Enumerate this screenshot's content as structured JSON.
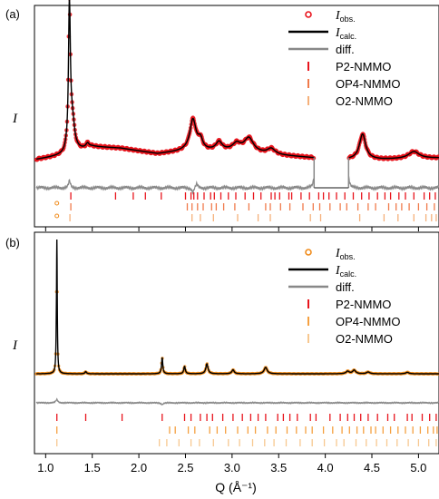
{
  "chart_data": [
    {
      "type": "line",
      "panel_label": "(a)",
      "ylabel": "I",
      "xlim": [
        0.88,
        5.22
      ],
      "grid": false,
      "legend_position": "top-right",
      "legend": [
        {
          "kind": "obs",
          "text": "I",
          "sub": "obs.",
          "color": "#e8141c"
        },
        {
          "kind": "calc",
          "text": "I",
          "sub": "calc.",
          "color": "#000000"
        },
        {
          "kind": "diff",
          "text": "diff.",
          "color": "#888888"
        },
        {
          "kind": "tick",
          "text": "P2-NMMO",
          "color": "#e8141c"
        },
        {
          "kind": "tick",
          "text": "OP4-NMMO",
          "color": "#f07a4a"
        },
        {
          "kind": "tick",
          "text": "O2-NMMO",
          "color": "#f5b07a"
        }
      ],
      "excluded_region": [
        3.88,
        4.25
      ],
      "peaks": [
        {
          "q": 1.255,
          "h": 1.0,
          "w": 0.012
        },
        {
          "q": 1.285,
          "h": 0.22,
          "w": 0.03
        },
        {
          "q": 1.45,
          "h": 0.03,
          "w": 0.02
        },
        {
          "q": 2.58,
          "h": 0.22,
          "w": 0.04
        },
        {
          "q": 2.66,
          "h": 0.07,
          "w": 0.03
        },
        {
          "q": 2.86,
          "h": 0.06,
          "w": 0.04
        },
        {
          "q": 3.05,
          "h": 0.05,
          "w": 0.05
        },
        {
          "q": 3.18,
          "h": 0.1,
          "w": 0.06
        },
        {
          "q": 3.42,
          "h": 0.04,
          "w": 0.05
        },
        {
          "q": 4.4,
          "h": 0.18,
          "w": 0.04
        },
        {
          "q": 4.95,
          "h": 0.05,
          "w": 0.07
        }
      ],
      "background": [
        [
          0.9,
          0.04
        ],
        [
          1.2,
          0.07
        ],
        [
          1.5,
          0.13
        ],
        [
          1.8,
          0.12
        ],
        [
          2.2,
          0.08
        ],
        [
          2.5,
          0.1
        ],
        [
          3.0,
          0.1
        ],
        [
          3.5,
          0.07
        ],
        [
          3.9,
          0.05
        ],
        [
          4.25,
          0.04
        ],
        [
          4.6,
          0.04
        ],
        [
          5.2,
          0.05
        ]
      ],
      "diff_features": [
        {
          "q": 1.255,
          "a": 0.12
        },
        {
          "q": 2.58,
          "a": -0.09
        },
        {
          "q": 2.62,
          "a": 0.07
        },
        {
          "q": 3.88,
          "a": 0.2
        },
        {
          "q": 4.25,
          "a": 0.2
        }
      ],
      "reflections": [
        {
          "phase": "P2-NMMO",
          "color": "#e8141c",
          "q": [
            1.27,
            1.75,
            1.94,
            2.07,
            2.24,
            2.5,
            2.56,
            2.59,
            2.63,
            2.7,
            2.77,
            2.81,
            2.88,
            2.96,
            3.04,
            3.14,
            3.23,
            3.31,
            3.42,
            3.46,
            3.51,
            3.61,
            3.64,
            3.74,
            3.83,
            3.93,
            3.98,
            4.04,
            4.12,
            4.21,
            4.3,
            4.39,
            4.47,
            4.56,
            4.64,
            4.7,
            4.79,
            4.86,
            4.95,
            5.06,
            5.12,
            5.18
          ]
        },
        {
          "phase": "OP4-NMMO",
          "color": "#f07a4a",
          "q": [
            1.27,
            2.52,
            2.57,
            2.63,
            2.69,
            2.78,
            2.83,
            2.91,
            3.03,
            3.18,
            3.36,
            3.41,
            3.52,
            3.62,
            3.76,
            3.87,
            3.94,
            4.05,
            4.16,
            4.23,
            4.35,
            4.46,
            4.54,
            4.68,
            4.76,
            4.82,
            4.9,
            5.0,
            5.09,
            5.17
          ]
        },
        {
          "phase": "O2-NMMO",
          "color": "#f5b07a",
          "q": [
            1.26,
            2.57,
            2.66,
            2.8,
            3.06,
            3.28,
            3.41,
            3.84,
            3.95,
            4.37,
            4.63,
            4.78,
            4.95,
            5.08,
            5.14,
            5.19
          ]
        }
      ]
    },
    {
      "type": "line",
      "panel_label": "(b)",
      "ylabel": "I",
      "xlabel": "Q (Å⁻¹)",
      "xlim": [
        0.88,
        5.22
      ],
      "x_ticks": [
        1.0,
        1.5,
        2.0,
        2.5,
        3.0,
        3.5,
        4.0,
        4.5,
        5.0
      ],
      "x_tick_labels": [
        "1.0",
        "1.5",
        "2.0",
        "2.5",
        "3.0",
        "3.5",
        "4.0",
        "4.5",
        "5.0"
      ],
      "grid": false,
      "legend_position": "top-right",
      "legend": [
        {
          "kind": "obs",
          "text": "I",
          "sub": "obs.",
          "color": "#f08c1c"
        },
        {
          "kind": "calc",
          "text": "I",
          "sub": "calc.",
          "color": "#000000"
        },
        {
          "kind": "diff",
          "text": "diff.",
          "color": "#888888"
        },
        {
          "kind": "tick",
          "text": "P2-NMMO",
          "color": "#e8141c"
        },
        {
          "kind": "tick",
          "text": "OP4-NMMO",
          "color": "#f5a040"
        },
        {
          "kind": "tick",
          "text": "O2-NMMO",
          "color": "#f7c890"
        }
      ],
      "peaks": [
        {
          "q": 1.12,
          "h": 0.74,
          "w": 0.005
        },
        {
          "q": 1.43,
          "h": 0.012,
          "w": 0.01
        },
        {
          "q": 2.25,
          "h": 0.09,
          "w": 0.008
        },
        {
          "q": 2.49,
          "h": 0.04,
          "w": 0.01
        },
        {
          "q": 2.73,
          "h": 0.055,
          "w": 0.014
        },
        {
          "q": 3.01,
          "h": 0.022,
          "w": 0.015
        },
        {
          "q": 3.36,
          "h": 0.035,
          "w": 0.02
        },
        {
          "q": 4.24,
          "h": 0.014,
          "w": 0.02
        },
        {
          "q": 4.31,
          "h": 0.02,
          "w": 0.02
        },
        {
          "q": 4.46,
          "h": 0.01,
          "w": 0.02
        },
        {
          "q": 4.88,
          "h": 0.008,
          "w": 0.02
        }
      ],
      "obs_outliers": [
        {
          "q": 1.12,
          "h": 0.95
        },
        {
          "q": 1.12,
          "h": 0.88
        }
      ],
      "background": [
        [
          0.9,
          0.01
        ],
        [
          5.2,
          0.01
        ]
      ],
      "diff_features": [
        {
          "q": 1.12,
          "a": 0.06
        },
        {
          "q": 2.25,
          "a": -0.03
        }
      ],
      "reflections": [
        {
          "phase": "P2-NMMO",
          "color": "#e8141c",
          "q": [
            1.12,
            1.43,
            1.82,
            2.25,
            2.49,
            2.56,
            2.66,
            2.73,
            2.79,
            2.9,
            3.01,
            3.11,
            3.2,
            3.28,
            3.36,
            3.49,
            3.55,
            3.62,
            3.7,
            3.84,
            3.9,
            4.05,
            4.16,
            4.24,
            4.31,
            4.38,
            4.46,
            4.56,
            4.67,
            4.74,
            4.88,
            4.93,
            5.04,
            5.12,
            5.19
          ]
        },
        {
          "phase": "OP4-NMMO",
          "color": "#f5a040",
          "q": [
            1.12,
            2.33,
            2.39,
            2.53,
            2.6,
            2.76,
            2.84,
            2.93,
            3.06,
            3.17,
            3.25,
            3.38,
            3.47,
            3.59,
            3.69,
            3.79,
            3.86,
            3.98,
            4.08,
            4.18,
            4.26,
            4.34,
            4.41,
            4.49,
            4.54,
            4.62,
            4.7,
            4.78,
            4.86,
            4.94,
            5.02,
            5.1,
            5.16,
            5.2
          ]
        },
        {
          "phase": "O2-NMMO",
          "color": "#f7c890",
          "q": [
            1.12,
            2.22,
            2.3,
            2.43,
            2.56,
            2.65,
            2.8,
            2.96,
            3.08,
            3.22,
            3.35,
            3.45,
            3.58,
            3.73,
            3.86,
            3.99,
            4.12,
            4.2,
            4.33,
            4.44,
            4.55,
            4.66,
            4.77,
            4.89,
            5.0,
            5.11,
            5.19
          ]
        }
      ]
    }
  ]
}
